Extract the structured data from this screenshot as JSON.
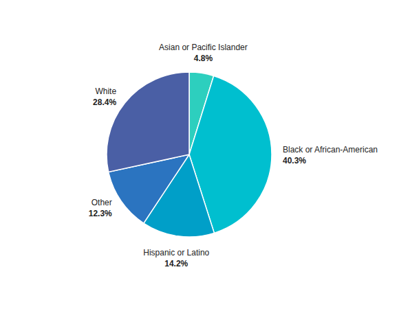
{
  "chart_data": {
    "type": "pie",
    "categories": [
      "Asian or Pacific Islander",
      "Black or African-American",
      "Hispanic or Latino",
      "Other",
      "White"
    ],
    "values": [
      4.8,
      40.3,
      14.2,
      12.3,
      28.4
    ],
    "value_labels": [
      "4.8%",
      "40.3%",
      "14.2%",
      "12.3%",
      "28.4%"
    ],
    "colors": [
      "#2DCFBE",
      "#00BFCF",
      "#009FC8",
      "#2B74C0",
      "#4A5FA5"
    ],
    "data_labels": true
  }
}
